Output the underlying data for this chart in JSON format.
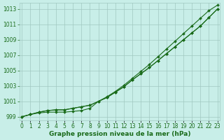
{
  "x": [
    0,
    1,
    2,
    3,
    4,
    5,
    6,
    7,
    8,
    9,
    10,
    11,
    12,
    13,
    14,
    15,
    16,
    17,
    18,
    19,
    20,
    21,
    22,
    23
  ],
  "line1_top": [
    999.0,
    999.3,
    999.6,
    999.8,
    999.9,
    999.9,
    1000.1,
    1000.3,
    1000.5,
    1001.0,
    1001.6,
    1002.3,
    1003.1,
    1004.0,
    1004.9,
    1005.8,
    1006.8,
    1007.8,
    1008.8,
    1009.8,
    1010.8,
    1011.8,
    1012.8,
    1013.5
  ],
  "line2_mid": [
    999.0,
    999.3,
    999.6,
    999.8,
    999.9,
    999.9,
    1000.1,
    1000.3,
    1000.5,
    1001.0,
    1001.5,
    1002.2,
    1002.9,
    1003.8,
    1004.6,
    1005.4,
    1006.3,
    1007.2,
    1008.1,
    1009.0,
    1009.9,
    1010.8,
    1011.9,
    1013.0
  ],
  "line3_low": [
    999.0,
    999.3,
    999.5,
    999.6,
    999.6,
    999.6,
    999.7,
    999.8,
    1000.1,
    1001.0,
    1001.5,
    1002.2,
    1002.9,
    1003.8,
    1004.6,
    1005.4,
    1006.3,
    1007.2,
    1008.1,
    1009.0,
    1009.9,
    1010.8,
    1011.9,
    1013.0
  ],
  "line_color": "#1a6b1a",
  "bg_color": "#c8eee8",
  "grid_color": "#a0c8c0",
  "text_color": "#1a6b1a",
  "ylabel_ticks": [
    999,
    1001,
    1003,
    1005,
    1007,
    1009,
    1011,
    1013
  ],
  "ylim": [
    998.5,
    1013.8
  ],
  "xlim": [
    -0.3,
    23.3
  ],
  "xlabel": "Graphe pression niveau de la mer (hPa)",
  "xlabel_fontsize": 6.5,
  "tick_fontsize": 5.5,
  "marker": "D",
  "markersize": 2.0,
  "linewidth": 0.8
}
